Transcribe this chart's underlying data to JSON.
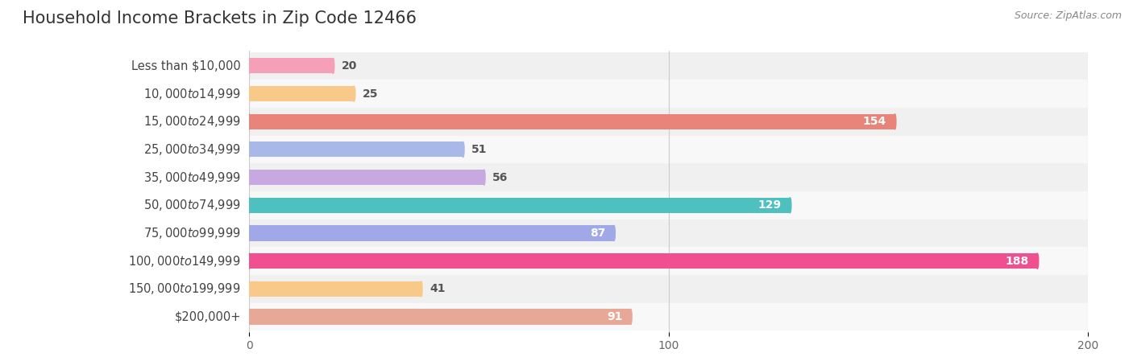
{
  "title": "Household Income Brackets in Zip Code 12466",
  "source": "Source: ZipAtlas.com",
  "categories": [
    "Less than $10,000",
    "$10,000 to $14,999",
    "$15,000 to $24,999",
    "$25,000 to $34,999",
    "$35,000 to $49,999",
    "$50,000 to $74,999",
    "$75,000 to $99,999",
    "$100,000 to $149,999",
    "$150,000 to $199,999",
    "$200,000+"
  ],
  "values": [
    20,
    25,
    154,
    51,
    56,
    129,
    87,
    188,
    41,
    91
  ],
  "bar_colors": [
    "#f5a0b8",
    "#f9c98a",
    "#e8847a",
    "#a8b8e8",
    "#c8a8e0",
    "#4ec0bf",
    "#a0a8e8",
    "#f05090",
    "#f9c98a",
    "#e8a898"
  ],
  "xlim": [
    0,
    200
  ],
  "xticks": [
    0,
    100,
    200
  ],
  "title_fontsize": 15,
  "label_fontsize": 10.5,
  "value_fontsize": 10,
  "bar_height": 0.55,
  "figsize": [
    14.06,
    4.49
  ],
  "value_threshold": 60
}
